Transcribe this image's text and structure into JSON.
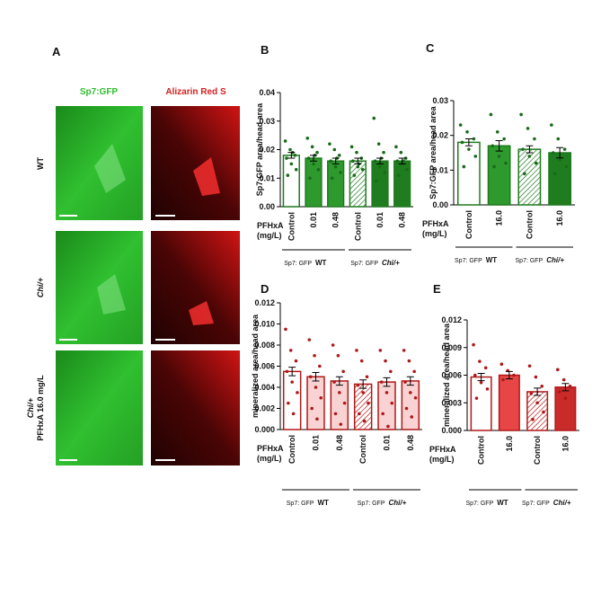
{
  "panel_a": {
    "label": "A",
    "columns": [
      "Sp7:GFP",
      "Alizarin Red S"
    ],
    "column_colors": [
      "#2fbf2f",
      "#d42020"
    ],
    "rows": [
      {
        "lines": [
          "WT"
        ],
        "italic_first": false
      },
      {
        "lines": [
          "Chi/+"
        ],
        "italic_first": true
      },
      {
        "lines": [
          "Chi/+",
          "PFHxA 16.0 mg/L"
        ],
        "italic_first": true
      }
    ]
  },
  "chart_data": [
    {
      "type": "bar",
      "label": "B",
      "y_label": "Sp7:GFP area/head area",
      "x_label": [
        "PFHxA",
        "(mg/L)"
      ],
      "categories": [
        "Control",
        "0.01",
        "0.48",
        "Control",
        "0.01",
        "0.48"
      ],
      "values": [
        0.018,
        0.017,
        0.016,
        0.016,
        0.016,
        0.016
      ],
      "errors": [
        0.001,
        0.001,
        0.001,
        0.001,
        0.001,
        0.001
      ],
      "points": [
        [
          0.023,
          0.02,
          0.018,
          0.017,
          0.015,
          0.013,
          0.011,
          0.019
        ],
        [
          0.024,
          0.021,
          0.019,
          0.017,
          0.015,
          0.013,
          0.01,
          0.018
        ],
        [
          0.022,
          0.02,
          0.018,
          0.016,
          0.014,
          0.012,
          0.01,
          0.017
        ],
        [
          0.021,
          0.019,
          0.017,
          0.016,
          0.014,
          0.013,
          0.011,
          0.015
        ],
        [
          0.031,
          0.022,
          0.019,
          0.016,
          0.014,
          0.012,
          0.009,
          0.017
        ],
        [
          0.021,
          0.019,
          0.017,
          0.016,
          0.015,
          0.013,
          0.011,
          0.016
        ]
      ],
      "fills": [
        "#ffffff",
        "#2e9a2e",
        "#2e9a2e",
        "hatch",
        "#1f7d1f",
        "#1f7d1f"
      ],
      "stroke": "#1e7a1e",
      "point_color": "#1a6b1a",
      "ylim": [
        0,
        0.04
      ],
      "yticks": [
        {
          "value": 0,
          "label": "0.00"
        },
        0.01,
        0.02,
        0.03,
        0.04
      ],
      "groups": [
        {
          "prefix": "Sp7: GFP",
          "name": "WT",
          "italic": false,
          "span": [
            0,
            2
          ]
        },
        {
          "prefix": "Sp7: GFP",
          "name": "Chi/+",
          "italic": true,
          "span": [
            3,
            5
          ]
        }
      ]
    },
    {
      "type": "bar",
      "label": "C",
      "y_label": "Sp7:GFP area/head area",
      "x_label": [
        "PFHxA",
        "(mg/L)"
      ],
      "categories": [
        "Control",
        "16.0",
        "Control",
        "16.0"
      ],
      "values": [
        0.018,
        0.017,
        0.016,
        0.015
      ],
      "errors": [
        0.001,
        0.0015,
        0.001,
        0.0015
      ],
      "points": [
        [
          0.023,
          0.021,
          0.019,
          0.018,
          0.016,
          0.014,
          0.011
        ],
        [
          0.026,
          0.021,
          0.019,
          0.017,
          0.014,
          0.012,
          0.011
        ],
        [
          0.026,
          0.022,
          0.019,
          0.016,
          0.014,
          0.012,
          0.009
        ],
        [
          0.023,
          0.019,
          0.016,
          0.015,
          0.013,
          0.011,
          0.009
        ]
      ],
      "fills": [
        "#ffffff",
        "#2e9a2e",
        "hatch",
        "#1f7d1f"
      ],
      "stroke": "#1e7a1e",
      "point_color": "#1a6b1a",
      "ylim": [
        0,
        0.03
      ],
      "yticks": [
        {
          "value": 0,
          "label": "0.00"
        },
        0.01,
        0.02,
        0.03
      ],
      "groups": [
        {
          "prefix": "Sp7: GFP",
          "name": "WT",
          "italic": false,
          "span": [
            0,
            1
          ]
        },
        {
          "prefix": "Sp7: GFP",
          "name": "Chi/+",
          "italic": true,
          "span": [
            2,
            3
          ]
        }
      ]
    },
    {
      "type": "bar",
      "label": "D",
      "y_label": "mineralized area/head area",
      "x_label": [
        "PFHxA",
        "(mg/L)"
      ],
      "categories": [
        "Control",
        "0.01",
        "0.48",
        "Control",
        "0.01",
        "0.48"
      ],
      "values": [
        0.0055,
        0.005,
        0.0046,
        0.0043,
        0.0045,
        0.0046
      ],
      "errors": [
        0.0004,
        0.0004,
        0.0004,
        0.0004,
        0.0004,
        0.0004
      ],
      "points": [
        [
          0.0095,
          0.0075,
          0.0065,
          0.0055,
          0.0045,
          0.0035,
          0.0025,
          0.0015
        ],
        [
          0.0085,
          0.007,
          0.006,
          0.005,
          0.004,
          0.003,
          0.002,
          0.001
        ],
        [
          0.008,
          0.007,
          0.0055,
          0.0045,
          0.0035,
          0.0025,
          0.0015,
          0.0005
        ],
        [
          0.0075,
          0.0065,
          0.005,
          0.0042,
          0.0035,
          0.0025,
          0.0015,
          0.0008
        ],
        [
          0.0075,
          0.0065,
          0.0055,
          0.0045,
          0.0035,
          0.0025,
          0.0015,
          0.0003
        ],
        [
          0.0075,
          0.0065,
          0.0055,
          0.0045,
          0.0035,
          0.003,
          0.002,
          0.0012
        ]
      ],
      "fills": [
        "#ffffff",
        "#f9d3d3",
        "#f9d3d3",
        "hatch",
        "#f9d3d3",
        "#f9d3d3"
      ],
      "stroke": "#b01818",
      "point_color": "#b01818",
      "ylim": [
        0,
        0.012
      ],
      "yticks": [
        {
          "value": 0,
          "label": "0.000"
        },
        0.002,
        0.004,
        0.006,
        0.008,
        {
          "value": 0.01,
          "label": "0.010"
        },
        0.012
      ],
      "groups": [
        {
          "prefix": "Sp7: GFP",
          "name": "WT",
          "italic": false,
          "span": [
            0,
            2
          ]
        },
        {
          "prefix": "Sp7: GFP",
          "name": "Chi/+",
          "italic": true,
          "span": [
            3,
            5
          ]
        }
      ]
    },
    {
      "type": "bar",
      "label": "E",
      "y_label": "mineralized area/head area",
      "x_label": [
        "PFHxA",
        "(mg/L)"
      ],
      "categories": [
        "Control",
        "16.0",
        "Control",
        "16.0"
      ],
      "values": [
        0.0058,
        0.006,
        0.0042,
        0.0047
      ],
      "errors": [
        0.0004,
        0.0004,
        0.0004,
        0.0004
      ],
      "points": [
        [
          0.0093,
          0.0075,
          0.0068,
          0.006,
          0.0052,
          0.0045,
          0.0035
        ],
        [
          0.0072,
          0.0065,
          0.006,
          0.0055
        ],
        [
          0.007,
          0.0058,
          0.0048,
          0.004,
          0.003,
          0.002,
          0.0012
        ],
        [
          0.0066,
          0.0055,
          0.0048,
          0.0042,
          0.0035
        ]
      ],
      "fills": [
        "#ffffff",
        "#e84646",
        "hatch",
        "#c92a2a"
      ],
      "stroke": "#b01818",
      "point_color": "#b01818",
      "ylim": [
        0,
        0.012
      ],
      "yticks": [
        {
          "value": 0,
          "label": "0.000"
        },
        0.003,
        0.006,
        0.009,
        0.012
      ],
      "groups": [
        {
          "prefix": "Sp7: GFP",
          "name": "WT",
          "italic": false,
          "span": [
            0,
            1
          ]
        },
        {
          "prefix": "Sp7: GFP",
          "name": "Chi/+",
          "italic": true,
          "span": [
            2,
            3
          ]
        }
      ]
    }
  ]
}
